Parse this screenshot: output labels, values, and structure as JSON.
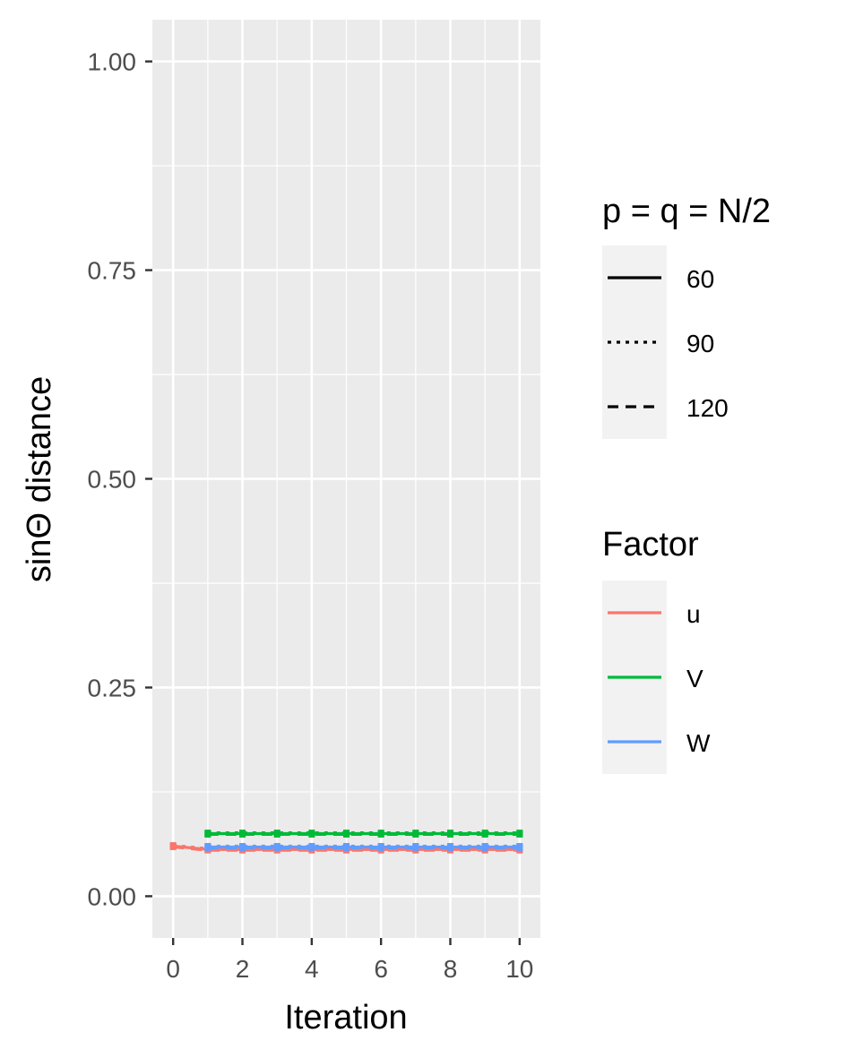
{
  "chart_data": {
    "type": "line",
    "title": "",
    "xlabel": "Iteration",
    "ylabel": "sinΘ distance",
    "xlim": [
      -0.6,
      10.6
    ],
    "ylim": [
      -0.05,
      1.05
    ],
    "x_ticks": [
      0,
      2,
      4,
      6,
      8,
      10
    ],
    "x_tick_labels": [
      "0",
      "2",
      "4",
      "6",
      "8",
      "10"
    ],
    "y_ticks": [
      0,
      0.25,
      0.5,
      0.75,
      1
    ],
    "y_tick_labels": [
      "0.00",
      "0.25",
      "0.50",
      "0.75",
      "1.00"
    ],
    "grid": true,
    "background": "#ebebeb",
    "legend_placement": "right",
    "legends": {
      "linetype": {
        "title": "p = q = N/2",
        "entries": [
          {
            "label": "60",
            "dash": "solid"
          },
          {
            "label": "90",
            "dash": "dotted"
          },
          {
            "label": "120",
            "dash": "dashed"
          }
        ]
      },
      "factor": {
        "title": "Factor",
        "entries": [
          {
            "label": "u",
            "color": "#F8766D"
          },
          {
            "label": "V",
            "color": "#00BA38"
          },
          {
            "label": "W",
            "color": "#619CFF"
          }
        ]
      }
    },
    "series": [
      {
        "factor": "u",
        "linetype": "60",
        "x": [
          0,
          1,
          2,
          3,
          4,
          5,
          6,
          7,
          8,
          9,
          10
        ],
        "y": [
          0.06,
          0.056,
          0.056,
          0.056,
          0.056,
          0.056,
          0.056,
          0.056,
          0.056,
          0.056,
          0.056
        ]
      },
      {
        "factor": "u",
        "linetype": "90",
        "x": [
          0,
          1,
          2,
          3,
          4,
          5,
          6,
          7,
          8,
          9,
          10
        ],
        "y": [
          0.061,
          0.057,
          0.057,
          0.057,
          0.057,
          0.057,
          0.057,
          0.057,
          0.057,
          0.057,
          0.057
        ]
      },
      {
        "factor": "u",
        "linetype": "120",
        "x": [
          0,
          1,
          2,
          3,
          4,
          5,
          6,
          7,
          8,
          9,
          10
        ],
        "y": [
          0.059,
          0.055,
          0.055,
          0.055,
          0.055,
          0.055,
          0.055,
          0.055,
          0.055,
          0.055,
          0.055
        ]
      },
      {
        "factor": "V",
        "linetype": "60",
        "x": [
          1,
          2,
          3,
          4,
          5,
          6,
          7,
          8,
          9,
          10
        ],
        "y": [
          0.075,
          0.075,
          0.075,
          0.075,
          0.075,
          0.075,
          0.075,
          0.075,
          0.075,
          0.075
        ]
      },
      {
        "factor": "V",
        "linetype": "90",
        "x": [
          1,
          2,
          3,
          4,
          5,
          6,
          7,
          8,
          9,
          10
        ],
        "y": [
          0.076,
          0.076,
          0.076,
          0.076,
          0.076,
          0.076,
          0.076,
          0.076,
          0.076,
          0.076
        ]
      },
      {
        "factor": "V",
        "linetype": "120",
        "x": [
          1,
          2,
          3,
          4,
          5,
          6,
          7,
          8,
          9,
          10
        ],
        "y": [
          0.074,
          0.074,
          0.074,
          0.074,
          0.074,
          0.074,
          0.074,
          0.074,
          0.074,
          0.074
        ]
      },
      {
        "factor": "W",
        "linetype": "60",
        "x": [
          1,
          2,
          3,
          4,
          5,
          6,
          7,
          8,
          9,
          10
        ],
        "y": [
          0.059,
          0.059,
          0.059,
          0.059,
          0.059,
          0.059,
          0.059,
          0.059,
          0.059,
          0.059
        ]
      },
      {
        "factor": "W",
        "linetype": "90",
        "x": [
          1,
          2,
          3,
          4,
          5,
          6,
          7,
          8,
          9,
          10
        ],
        "y": [
          0.06,
          0.06,
          0.06,
          0.06,
          0.06,
          0.06,
          0.06,
          0.06,
          0.06,
          0.06
        ]
      },
      {
        "factor": "W",
        "linetype": "120",
        "x": [
          1,
          2,
          3,
          4,
          5,
          6,
          7,
          8,
          9,
          10
        ],
        "y": [
          0.058,
          0.058,
          0.058,
          0.058,
          0.058,
          0.058,
          0.058,
          0.058,
          0.058,
          0.058
        ]
      }
    ]
  }
}
